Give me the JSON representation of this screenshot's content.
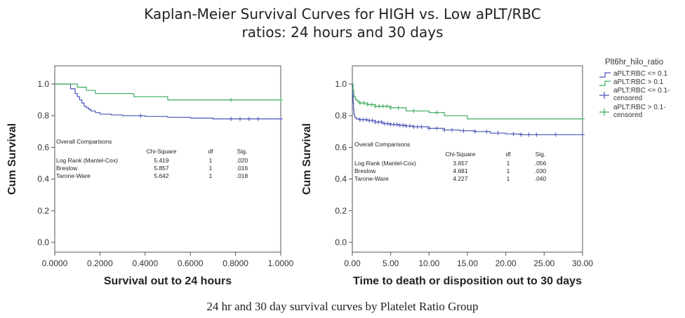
{
  "title_line1": "Kaplan-Meier Survival Curves for HIGH vs. Low aPLT/RBC",
  "title_line2": "ratios: 24 hours and 30 days",
  "caption": "24 hr and 30 day survival curves by Platelet Ratio Group",
  "colors": {
    "low": "#4a55b8",
    "high": "#3aaa5a"
  },
  "chart_data": [
    {
      "type": "line",
      "xlabel": "Survival out to 24 hours",
      "ylabel": "Cum Survival",
      "xlim": [
        0,
        1
      ],
      "ylim": [
        0,
        1
      ],
      "x_ticks": [
        "0.0000",
        "0.2000",
        "0.4000",
        "0.6000",
        "0.8000",
        "1.0000"
      ],
      "y_ticks": [
        "0.0",
        "0.2",
        "0.4",
        "0.6",
        "0.8",
        "1.0"
      ],
      "series": [
        {
          "name": "aPLT:RBC <= 0.1",
          "x": [
            0,
            0.05,
            0.07,
            0.09,
            0.1,
            0.11,
            0.12,
            0.13,
            0.14,
            0.15,
            0.16,
            0.18,
            0.2,
            0.25,
            0.3,
            0.4,
            0.5,
            0.6,
            0.7,
            1.0
          ],
          "y": [
            1.0,
            1.0,
            0.97,
            0.94,
            0.92,
            0.9,
            0.88,
            0.86,
            0.85,
            0.84,
            0.83,
            0.82,
            0.81,
            0.805,
            0.8,
            0.795,
            0.79,
            0.785,
            0.78,
            0.78
          ],
          "censored_x": [
            0.38,
            0.78,
            0.82,
            0.86,
            0.9,
            1.0
          ]
        },
        {
          "name": "aPLT:RBC > 0.1",
          "x": [
            0,
            0.08,
            0.1,
            0.14,
            0.18,
            0.2,
            0.35,
            0.5,
            1.0
          ],
          "y": [
            1.0,
            1.0,
            0.98,
            0.96,
            0.94,
            0.94,
            0.92,
            0.9,
            0.9
          ],
          "censored_x": [
            0.78,
            1.0
          ]
        }
      ],
      "comparison": {
        "heading": "Overall Comparisons",
        "columns": [
          "Chi-Square",
          "df",
          "Sig."
        ],
        "rows": [
          {
            "test": "Log Rank (Mantel-Cox)",
            "chi": "5.419",
            "df": "1",
            "sig": ".020"
          },
          {
            "test": "Breslow",
            "chi": "5.857",
            "df": "1",
            "sig": ".016"
          },
          {
            "test": "Tarone-Ware",
            "chi": "5.642",
            "df": "1",
            "sig": ".018"
          }
        ]
      }
    },
    {
      "type": "line",
      "xlabel": "Time to death or disposition out to 30 days",
      "ylabel": "Cum Survival",
      "xlim": [
        0,
        30
      ],
      "ylim": [
        0,
        1
      ],
      "x_ticks": [
        "0.00",
        "5.00",
        "10.00",
        "15.00",
        "20.00",
        "25.00",
        "30.00"
      ],
      "y_ticks": [
        "0.0",
        "0.2",
        "0.4",
        "0.6",
        "0.8",
        "1.0"
      ],
      "series": [
        {
          "name": "aPLT:RBC <= 0.1",
          "x": [
            0,
            0.05,
            0.1,
            0.15,
            0.2,
            0.3,
            0.5,
            1.0,
            2.0,
            3.0,
            4.0,
            5.0,
            6.0,
            7.0,
            8.0,
            10.0,
            12.0,
            14.0,
            16.0,
            18.0,
            20.0,
            22.0,
            30.0
          ],
          "y": [
            1.0,
            0.93,
            0.88,
            0.84,
            0.81,
            0.79,
            0.78,
            0.775,
            0.77,
            0.76,
            0.75,
            0.745,
            0.74,
            0.735,
            0.73,
            0.72,
            0.71,
            0.705,
            0.7,
            0.69,
            0.685,
            0.68,
            0.68
          ],
          "censored_x": [
            1.0,
            1.4,
            1.8,
            2.2,
            2.6,
            3.0,
            3.4,
            3.8,
            4.2,
            4.6,
            5.0,
            5.4,
            5.8,
            6.2,
            6.6,
            7.0,
            7.5,
            8.0,
            8.5,
            9.0,
            10.0,
            11.0,
            12.0,
            13.0,
            14.5,
            16.0,
            17.5,
            19.0,
            21.0,
            22.0,
            23.0,
            24.0,
            26.5,
            30.0
          ]
        },
        {
          "name": "aPLT:RBC > 0.1",
          "x": [
            0,
            0.1,
            0.2,
            0.4,
            0.7,
            1.0,
            2.0,
            3.0,
            5.0,
            7.0,
            10.0,
            12.0,
            15.0,
            30.0
          ],
          "y": [
            1.0,
            0.96,
            0.92,
            0.9,
            0.89,
            0.88,
            0.87,
            0.86,
            0.85,
            0.83,
            0.82,
            0.8,
            0.78,
            0.78
          ],
          "censored_x": [
            1.0,
            1.5,
            2.0,
            2.5,
            3.0,
            3.5,
            4.0,
            4.5,
            5.0,
            6.0,
            8.0,
            11.0,
            30.0
          ]
        }
      ],
      "comparison": {
        "heading": "Overall Comparisons",
        "columns": [
          "Chi-Square",
          "df",
          "Sig."
        ],
        "rows": [
          {
            "test": "Log Rank (Mantel-Cox)",
            "chi": "3.657",
            "df": "1",
            "sig": ".056"
          },
          {
            "test": "Breslow",
            "chi": "4.681",
            "df": "1",
            "sig": ".030"
          },
          {
            "test": "Tarone-Ware",
            "chi": "4.227",
            "df": "1",
            "sig": ".040"
          }
        ]
      }
    }
  ],
  "legend": {
    "title": "Plt6hr_hilo_ratio",
    "entries": [
      {
        "kind": "line",
        "series": "low",
        "lines": [
          "aPLT:RBC <= 0.1"
        ]
      },
      {
        "kind": "line",
        "series": "high",
        "lines": [
          "aPLT:RBC > 0.1"
        ]
      },
      {
        "kind": "censor",
        "series": "low",
        "lines": [
          "aPLT:RBC <= 0.1-",
          "censored"
        ]
      },
      {
        "kind": "censor",
        "series": "high",
        "lines": [
          "aPLT:RBC > 0.1-",
          "censored"
        ]
      }
    ]
  }
}
